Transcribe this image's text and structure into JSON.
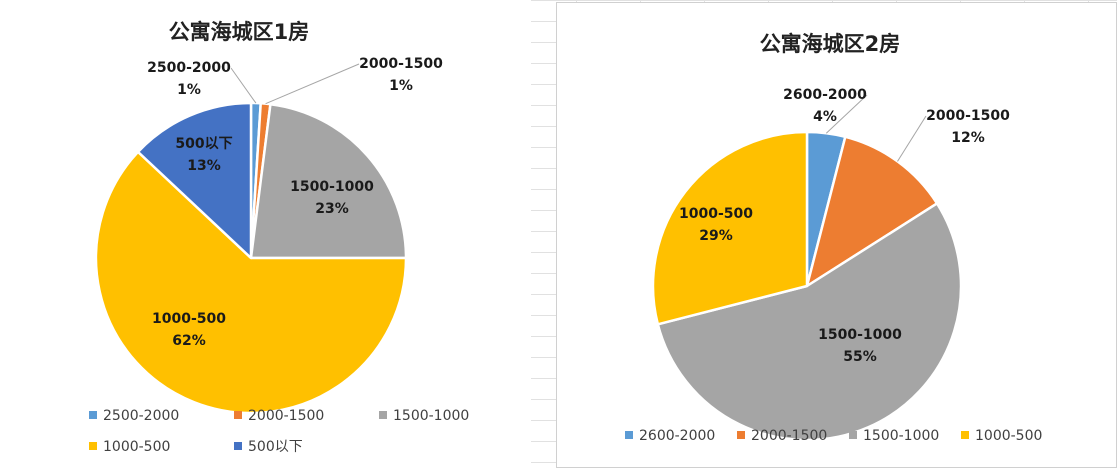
{
  "chart_data": [
    {
      "type": "pie",
      "title": "公寓海城区1房",
      "categories": [
        "2500-2000",
        "2000-1500",
        "1500-1000",
        "1000-500",
        "500以下"
      ],
      "values": [
        1,
        1,
        23,
        62,
        13
      ],
      "labels": [
        "1%",
        "1%",
        "23%",
        "62%",
        "13%"
      ],
      "colors": [
        "#5B9BD5",
        "#ED7D31",
        "#A5A5A5",
        "#FFC000",
        "#4472C4"
      ],
      "legend": "bottom"
    },
    {
      "type": "pie",
      "title": "公寓海城区2房",
      "categories": [
        "2600-2000",
        "2000-1500",
        "1500-1000",
        "1000-500"
      ],
      "values": [
        4,
        12,
        55,
        29
      ],
      "labels": [
        "4%",
        "12%",
        "55%",
        "29%"
      ],
      "colors": [
        "#5B9BD5",
        "#ED7D31",
        "#A5A5A5",
        "#FFC000"
      ],
      "legend": "bottom"
    }
  ]
}
